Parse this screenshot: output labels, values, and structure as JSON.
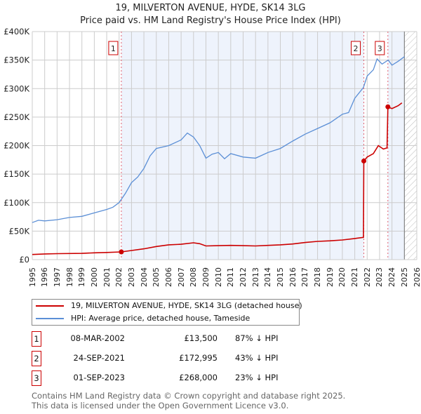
{
  "chart_data": {
    "type": "line",
    "title": "19, MILVERTON AVENUE, HYDE, SK14 3LG",
    "subtitle": "Price paid vs. HM Land Registry's House Price Index (HPI)",
    "xlim": [
      1995,
      2026
    ],
    "ylim": [
      0,
      400000
    ],
    "x_ticks": [
      "1995",
      "1996",
      "1997",
      "1998",
      "1999",
      "2000",
      "2001",
      "2002",
      "2003",
      "2004",
      "2005",
      "2006",
      "2007",
      "2008",
      "2009",
      "2010",
      "2011",
      "2012",
      "2013",
      "2014",
      "2015",
      "2016",
      "2017",
      "2018",
      "2019",
      "2020",
      "2021",
      "2022",
      "2023",
      "2024",
      "2025",
      "2026"
    ],
    "y_ticks": [
      {
        "v": 0,
        "label": "£0"
      },
      {
        "v": 50000,
        "label": "£50K"
      },
      {
        "v": 100000,
        "label": "£100K"
      },
      {
        "v": 150000,
        "label": "£150K"
      },
      {
        "v": 200000,
        "label": "£200K"
      },
      {
        "v": 250000,
        "label": "£250K"
      },
      {
        "v": 300000,
        "label": "£300K"
      },
      {
        "v": 350000,
        "label": "£350K"
      },
      {
        "v": 400000,
        "label": "£400K"
      }
    ],
    "grid": true,
    "series": [
      {
        "name": "19, MILVERTON AVENUE, HYDE, SK14 3LG (detached house)",
        "color": "#cc0000",
        "points": [
          [
            1995,
            9000
          ],
          [
            1996,
            10000
          ],
          [
            1997,
            10500
          ],
          [
            1999,
            11000
          ],
          [
            2000,
            12000
          ],
          [
            2001,
            12500
          ],
          [
            2002.18,
            13500
          ],
          [
            2003,
            16000
          ],
          [
            2004,
            19000
          ],
          [
            2005,
            23000
          ],
          [
            2006,
            26000
          ],
          [
            2007,
            27000
          ],
          [
            2008,
            29500
          ],
          [
            2008.5,
            28000
          ],
          [
            2009,
            24000
          ],
          [
            2010,
            24500
          ],
          [
            2011,
            25000
          ],
          [
            2012,
            24500
          ],
          [
            2013,
            24000
          ],
          [
            2014,
            25000
          ],
          [
            2015,
            26000
          ],
          [
            2016,
            27500
          ],
          [
            2017,
            30000
          ],
          [
            2018,
            32000
          ],
          [
            2019,
            33000
          ],
          [
            2020,
            34500
          ],
          [
            2021,
            37000
          ],
          [
            2021.7,
            39000
          ],
          [
            2021.73,
            172995
          ],
          [
            2022,
            180000
          ],
          [
            2022.5,
            186000
          ],
          [
            2022.9,
            200000
          ],
          [
            2023.3,
            194000
          ],
          [
            2023.6,
            196000
          ],
          [
            2023.67,
            268000
          ],
          [
            2024,
            265000
          ],
          [
            2024.5,
            270000
          ],
          [
            2024.8,
            275000
          ]
        ]
      },
      {
        "name": "HPI: Average price, detached house, Tameside",
        "color": "#5b8fd6",
        "points": [
          [
            1995,
            65000
          ],
          [
            1995.5,
            69000
          ],
          [
            1996,
            68000
          ],
          [
            1997,
            70000
          ],
          [
            1998,
            74000
          ],
          [
            1999,
            76000
          ],
          [
            2000,
            82000
          ],
          [
            2001,
            88000
          ],
          [
            2001.5,
            92000
          ],
          [
            2002,
            100000
          ],
          [
            2002.5,
            116000
          ],
          [
            2003,
            135000
          ],
          [
            2003.5,
            145000
          ],
          [
            2004,
            160000
          ],
          [
            2004.5,
            182000
          ],
          [
            2005,
            195000
          ],
          [
            2006,
            200000
          ],
          [
            2007,
            210000
          ],
          [
            2007.5,
            222000
          ],
          [
            2008,
            215000
          ],
          [
            2008.5,
            200000
          ],
          [
            2009,
            178000
          ],
          [
            2009.5,
            185000
          ],
          [
            2010,
            188000
          ],
          [
            2010.5,
            177000
          ],
          [
            2011,
            186000
          ],
          [
            2012,
            180000
          ],
          [
            2013,
            178000
          ],
          [
            2014,
            188000
          ],
          [
            2015,
            195000
          ],
          [
            2016,
            208000
          ],
          [
            2017,
            220000
          ],
          [
            2018,
            230000
          ],
          [
            2019,
            240000
          ],
          [
            2020,
            255000
          ],
          [
            2020.5,
            258000
          ],
          [
            2021,
            283000
          ],
          [
            2021.7,
            302000
          ],
          [
            2022,
            322000
          ],
          [
            2022.5,
            333000
          ],
          [
            2022.8,
            352000
          ],
          [
            2023.2,
            343000
          ],
          [
            2023.7,
            350000
          ],
          [
            2024,
            341000
          ],
          [
            2024.5,
            348000
          ],
          [
            2025,
            356000
          ]
        ]
      }
    ],
    "sales": [
      {
        "id": "1",
        "x": 2002.18,
        "value": 13500,
        "date": "08-MAR-2002",
        "price": "£13,500",
        "hpi": "87% ↓ HPI"
      },
      {
        "id": "2",
        "x": 2021.73,
        "value": 172995,
        "date": "24-SEP-2021",
        "price": "£172,995",
        "hpi": "43% ↓ HPI"
      },
      {
        "id": "3",
        "x": 2023.67,
        "value": 268000,
        "date": "01-SEP-2023",
        "price": "£268,000",
        "hpi": "23% ↓ HPI"
      }
    ],
    "forecast_from": 2025
  },
  "footer": {
    "line1": "Contains HM Land Registry data © Crown copyright and database right 2025.",
    "line2": "This data is licensed under the Open Government Licence v3.0."
  }
}
